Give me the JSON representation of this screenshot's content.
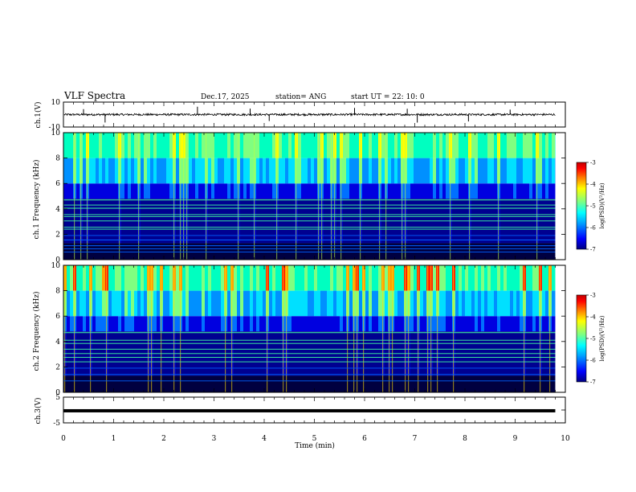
{
  "header": {
    "title": "VLF Spectra",
    "date": "Dec.17, 2025",
    "station": "station= ANG",
    "start": "start  UT  =   22: 10: 0"
  },
  "chart_data": [
    {
      "type": "line",
      "name": "ch1-waveform",
      "ylabel": "ch.1(V)",
      "ylim": [
        -10,
        10
      ],
      "yticks": [
        "10",
        "-10"
      ],
      "xlim": [
        0,
        10
      ],
      "x_end": 9.8,
      "baseline": 0.0,
      "spikes_min": [
        0.4,
        0.83,
        2.67,
        3.72,
        4.1,
        5.8,
        6.85,
        7.05,
        8.07,
        8.9
      ]
    },
    {
      "type": "heatmap",
      "name": "ch1-spectrogram",
      "ylabel": "ch.1  Frequency (kHz)",
      "ylim": [
        0,
        10
      ],
      "yticks": [
        "0",
        "2",
        "4",
        "6",
        "8",
        "10"
      ],
      "xlim": [
        0,
        10
      ],
      "x_end": 9.8,
      "colorbar": {
        "label": "log(PSD)(V²/Hz)",
        "range": [
          -7,
          -3
        ],
        "ticks": [
          "-3",
          "-4",
          "-5",
          "-6",
          "-7"
        ]
      },
      "line_freqs_khz": [
        0.6,
        0.85,
        1.1,
        1.55,
        1.9,
        2.4,
        2.55,
        3.05,
        3.4,
        3.55,
        4.05,
        4.3,
        4.7
      ]
    },
    {
      "type": "heatmap",
      "name": "ch2-spectrogram",
      "ylabel": "ch.2  Frequency (kHz)",
      "ylim": [
        0,
        10
      ],
      "yticks": [
        "0",
        "2",
        "4",
        "6",
        "8",
        "10"
      ],
      "xlim": [
        0,
        10
      ],
      "x_end": 9.8,
      "colorbar": {
        "label": "log(PSD)(V²/Hz)",
        "range": [
          -7,
          -3
        ],
        "ticks": [
          "-3",
          "-4",
          "-5",
          "-6",
          "-7"
        ]
      },
      "line_freqs_khz": [
        0.9,
        1.4,
        1.9,
        2.4,
        2.75,
        3.05,
        3.4,
        3.85,
        4.1,
        4.7
      ]
    },
    {
      "type": "line",
      "name": "ch3-waveform",
      "ylabel": "ch.3(V)",
      "ylim": [
        -5,
        5
      ],
      "yticks": [
        "5",
        "0",
        "-5"
      ],
      "xlim": [
        0,
        10
      ],
      "x_end": 9.8,
      "baseline": -0.3
    }
  ],
  "xaxis": {
    "label": "Time (min)",
    "ticks": [
      "0",
      "1",
      "2",
      "3",
      "4",
      "5",
      "6",
      "7",
      "8",
      "9",
      "10"
    ]
  },
  "colors": {
    "scale": [
      "#000080",
      "#0000ff",
      "#00a0ff",
      "#00ffff",
      "#80ff80",
      "#ffff00",
      "#ff8000",
      "#ff0000",
      "#c00000"
    ]
  }
}
